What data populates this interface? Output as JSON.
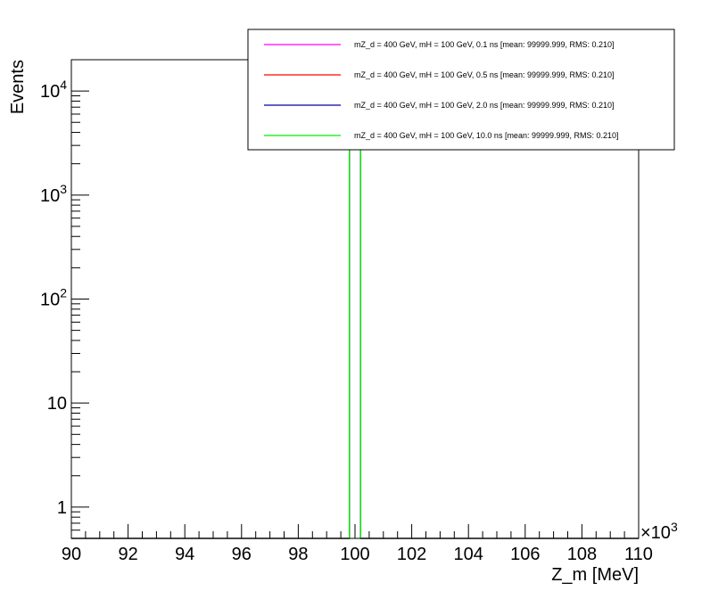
{
  "chart_data": {
    "type": "line",
    "title": "",
    "xlabel": "Z_m [MeV]",
    "ylabel": "Events",
    "x_exponent_label": "×10",
    "x_exponent_power": "3",
    "xlim": [
      90,
      110
    ],
    "ylim": [
      0.5,
      20000
    ],
    "yscale": "log",
    "x_ticks": [
      "90",
      "92",
      "94",
      "96",
      "98",
      "100",
      "102",
      "104",
      "106",
      "108",
      "110"
    ],
    "y_ticks": [
      {
        "value": 1,
        "base": "1",
        "power": ""
      },
      {
        "value": 10,
        "base": "10",
        "power": ""
      },
      {
        "value": 100,
        "base": "10",
        "power": "2"
      },
      {
        "value": 1000,
        "base": "10",
        "power": "3"
      },
      {
        "value": 10000,
        "base": "10",
        "power": "4"
      }
    ],
    "legend_position": "top-right",
    "series": [
      {
        "name": "mZ_d = 400 GeV, mH = 100 GeV, 0.1 ns [mean: 99999.999, RMS: 0.210]",
        "color": "#ff00ff",
        "bin_low": 99.8,
        "bin_high": 100.2,
        "peak": 20000
      },
      {
        "name": "mZ_d = 400 GeV, mH = 100 GeV, 0.5 ns [mean: 99999.999, RMS: 0.210]",
        "color": "#ff0000",
        "bin_low": 99.8,
        "bin_high": 100.2,
        "peak": 20000
      },
      {
        "name": "mZ_d = 400 GeV, mH = 100 GeV, 2.0 ns [mean: 99999.999, RMS: 0.210]",
        "color": "#000099",
        "bin_low": 99.8,
        "bin_high": 100.2,
        "peak": 20000
      },
      {
        "name": "mZ_d = 400 GeV, mH = 100 GeV, 10.0 ns [mean: 99999.999, RMS: 0.210]",
        "color": "#00ee00",
        "bin_low": 99.8,
        "bin_high": 100.2,
        "peak": 20000
      }
    ]
  }
}
